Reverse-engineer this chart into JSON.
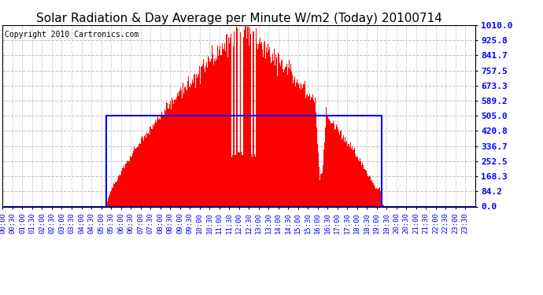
{
  "title": "Solar Radiation & Day Average per Minute W/m2 (Today) 20100714",
  "copyright": "Copyright 2010 Cartronics.com",
  "ymax": 1010.0,
  "ymin": 0.0,
  "yticks": [
    0.0,
    84.2,
    168.3,
    252.5,
    336.7,
    420.8,
    505.0,
    589.2,
    673.3,
    757.5,
    841.7,
    925.8,
    1010.0
  ],
  "total_minutes": 1440,
  "sunrise_minute": 315,
  "sunset_minute": 1156,
  "peak_minute": 735,
  "peak_value": 1010.0,
  "avg_value": 505.0,
  "fill_color": "#FF0000",
  "avg_line_color": "#0000FF",
  "background_color": "#FFFFFF",
  "grid_color": "#C0C0C0",
  "title_fontsize": 11,
  "copyright_fontsize": 7,
  "tick_fontsize": 6.5,
  "tick_interval": 30
}
